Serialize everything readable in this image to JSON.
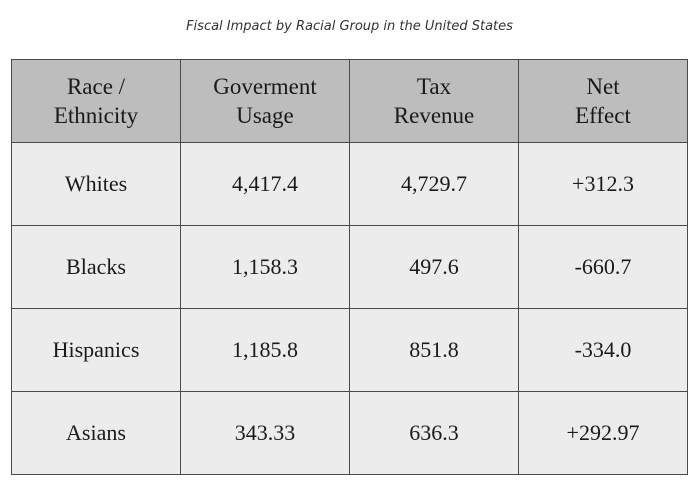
{
  "caption": "Fiscal Impact by Racial Group in the United States",
  "table": {
    "headers": [
      {
        "line1": "Race /",
        "line2": "Ethnicity"
      },
      {
        "line1": "Goverment",
        "line2": "Usage"
      },
      {
        "line1": "Tax",
        "line2": "Revenue"
      },
      {
        "line1": "Net",
        "line2": "Effect"
      }
    ],
    "rows": [
      [
        "Whites",
        "4,417.4",
        "4,729.7",
        "+312.3"
      ],
      [
        "Blacks",
        "1,158.3",
        "497.6",
        "-660.7"
      ],
      [
        "Hispanics",
        "1,185.8",
        "851.8",
        "-334.0"
      ],
      [
        "Asians",
        "343.33",
        "636.3",
        "+292.97"
      ]
    ]
  },
  "colors": {
    "header_bg": "#bdbdbd",
    "cell_bg": "#ececec",
    "border": "#4a4a4a"
  }
}
